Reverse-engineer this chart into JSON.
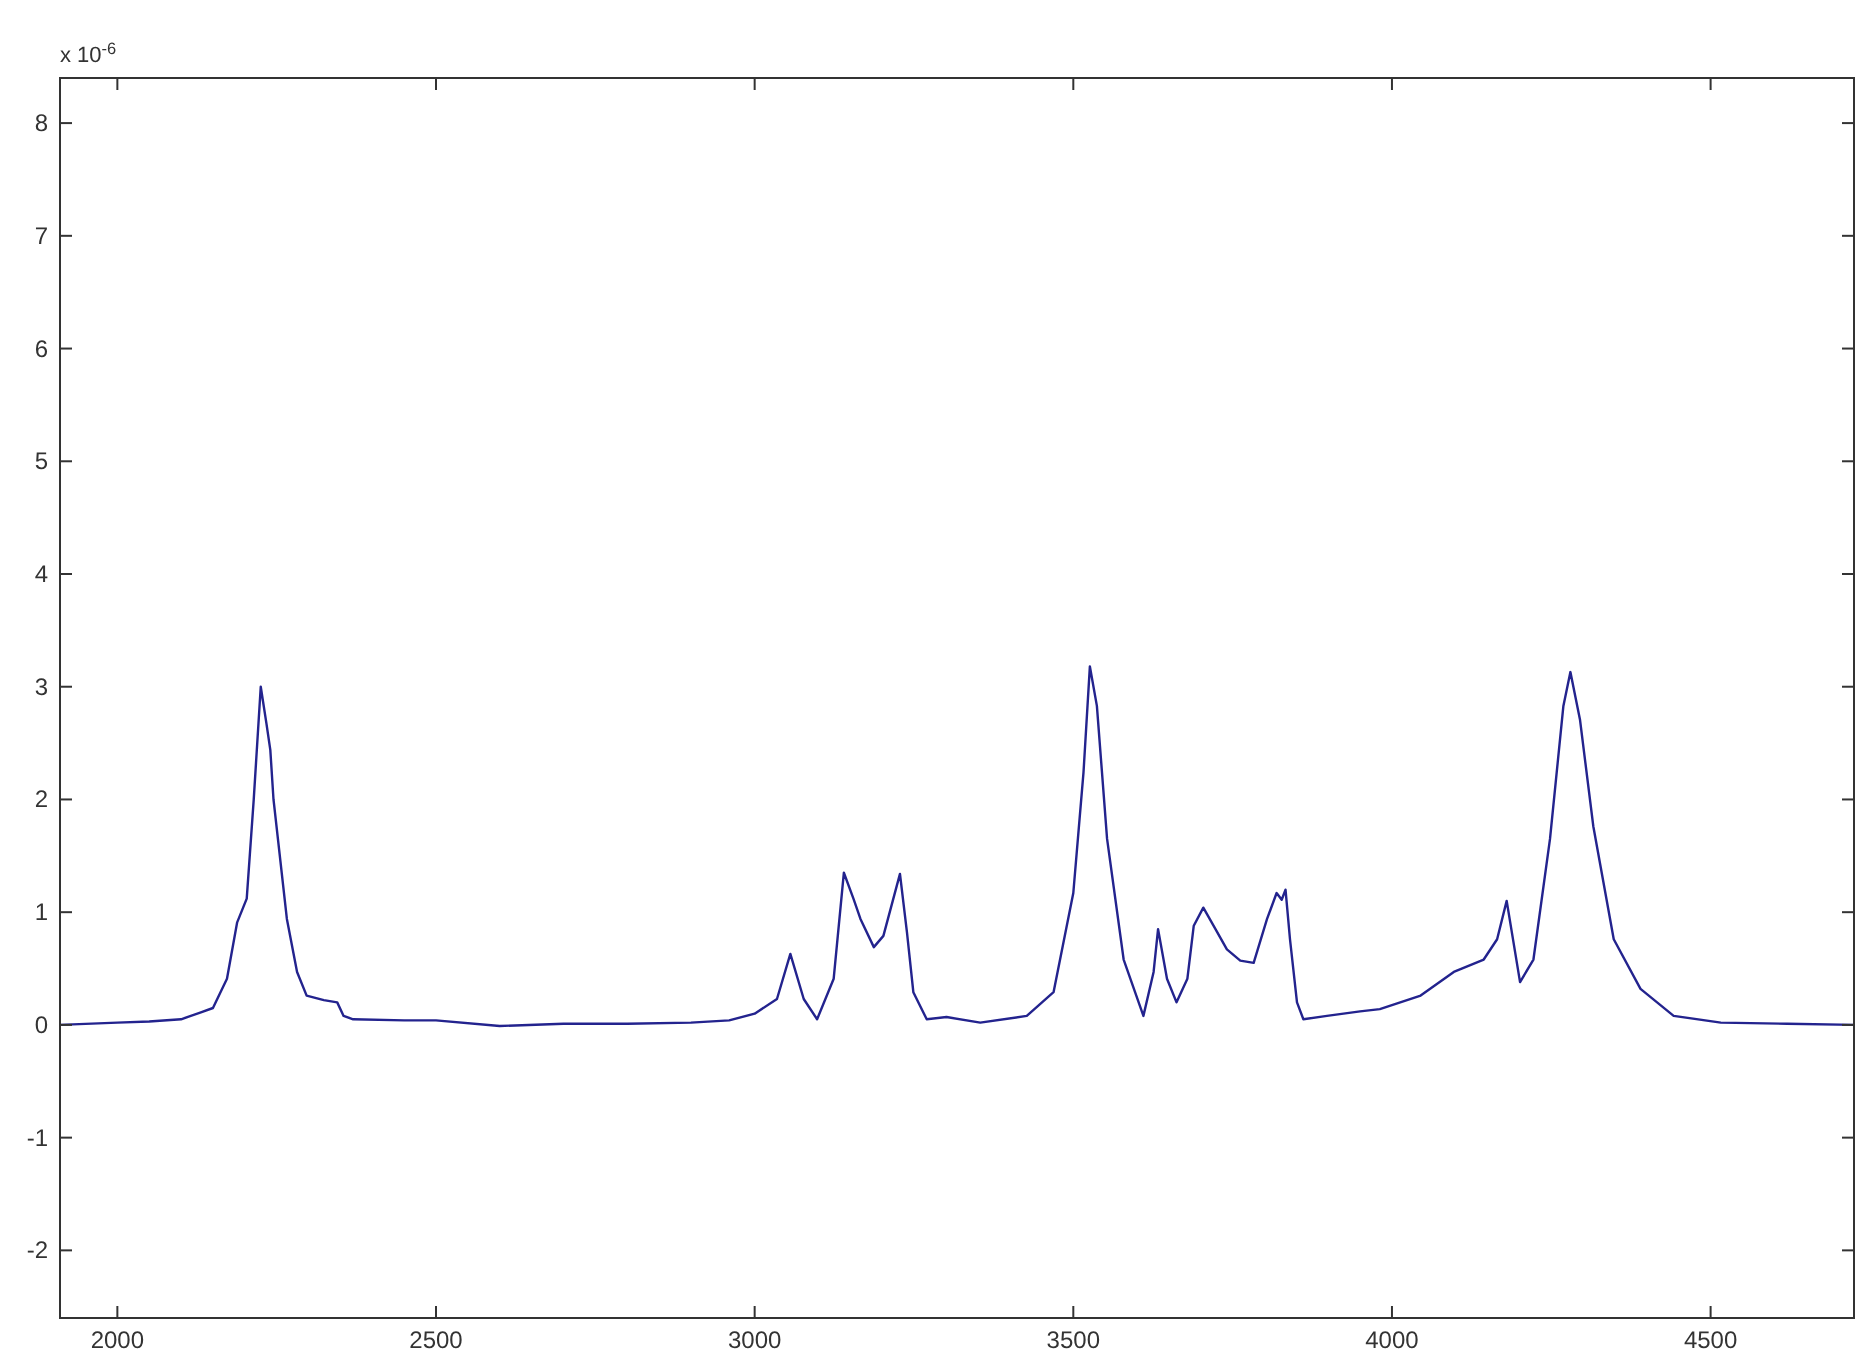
{
  "chart_data": {
    "type": "line",
    "annotations": [
      "x 10$^{-6}$"
    ],
    "xlim": [
      1910,
      4725
    ],
    "ylim": [
      -2.6,
      8.4
    ],
    "xticks": [
      2000,
      2500,
      3000,
      3500,
      4000,
      4500
    ],
    "yticks": [
      -2,
      -1,
      0,
      1,
      2,
      3,
      4,
      5,
      6,
      7,
      8
    ],
    "grid": false,
    "marker": "none",
    "line_style": "solid",
    "series": [
      {
        "color": "#23238e",
        "x": [
          1910,
          2000,
          2050,
          2100,
          2130,
          2150,
          2172,
          2188,
          2203,
          2214,
          2225,
          2234,
          2240,
          2245,
          2266,
          2282,
          2297,
          2324,
          2345,
          2355,
          2370,
          2450,
          2500,
          2600,
          2700,
          2800,
          2900,
          2960,
          3000,
          3035,
          3056,
          3077,
          3098,
          3124,
          3140,
          3155,
          3166,
          3187,
          3202,
          3228,
          3239,
          3249,
          3270,
          3301,
          3354,
          3427,
          3469,
          3500,
          3516,
          3526,
          3537,
          3553,
          3579,
          3610,
          3626,
          3633,
          3647,
          3662,
          3679,
          3689,
          3704,
          3720,
          3741,
          3762,
          3783,
          3804,
          3819,
          3827,
          3833,
          3840,
          3851,
          3861,
          3898,
          3950,
          3981,
          4045,
          4097,
          4144,
          4165,
          4180,
          4201,
          4222,
          4248,
          4269,
          4280,
          4295,
          4316,
          4348,
          4390,
          4442,
          4516,
          4620,
          4725
        ],
        "values": [
          0,
          0.02,
          0.03,
          0.05,
          0.11,
          0.15,
          0.41,
          0.91,
          1.12,
          2,
          3.0,
          2.67,
          2.44,
          2,
          0.94,
          0.47,
          0.26,
          0.22,
          0.2,
          0.08,
          0.05,
          0.04,
          0.04,
          -0.01,
          0.01,
          0.01,
          0.02,
          0.04,
          0.1,
          0.23,
          0.63,
          0.23,
          0.05,
          0.41,
          1.35,
          1.12,
          0.94,
          0.69,
          0.79,
          1.34,
          0.82,
          0.29,
          0.05,
          0.07,
          0.02,
          0.08,
          0.29,
          1.17,
          2.24,
          3.18,
          2.83,
          1.65,
          0.58,
          0.08,
          0.47,
          0.85,
          0.41,
          0.2,
          0.41,
          0.88,
          1.04,
          0.88,
          0.67,
          0.57,
          0.55,
          0.94,
          1.17,
          1.11,
          1.2,
          0.76,
          0.2,
          0.05,
          0.08,
          0.12,
          0.14,
          0.26,
          0.47,
          0.58,
          0.76,
          1.1,
          0.38,
          0.58,
          1.65,
          2.83,
          3.13,
          2.71,
          1.76,
          0.76,
          0.32,
          0.08,
          0.02,
          0.01,
          0
        ]
      }
    ]
  }
}
